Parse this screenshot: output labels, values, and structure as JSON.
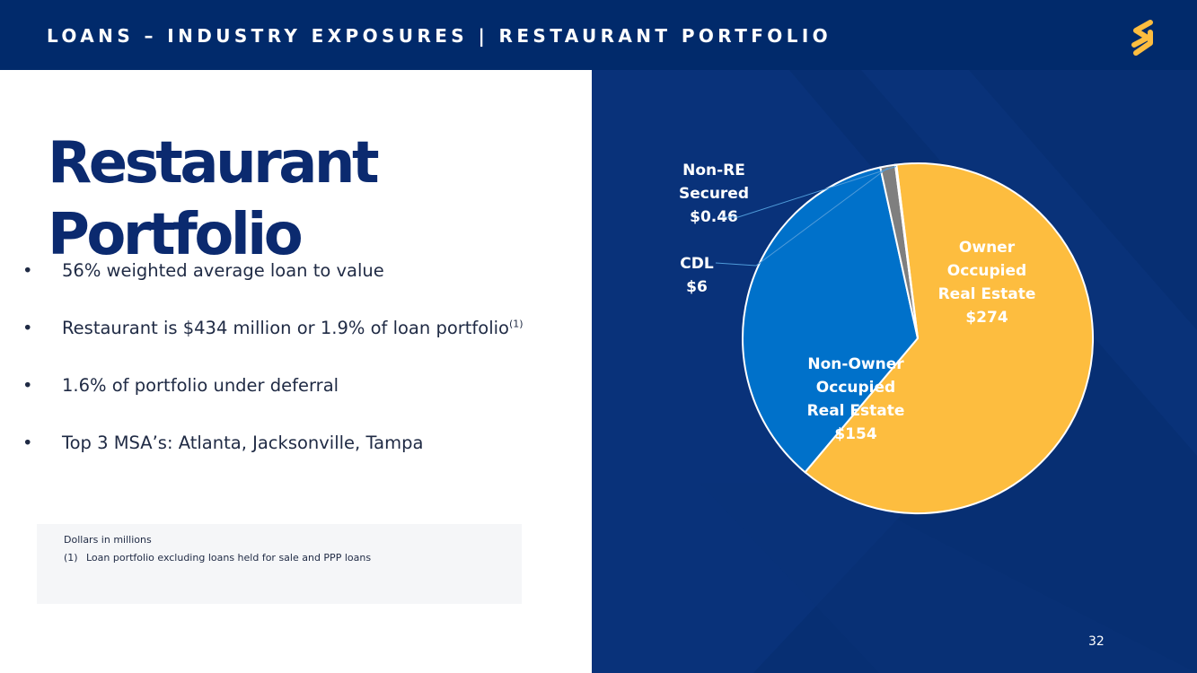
{
  "header": {
    "title": "LOANS – INDUSTRY EXPOSURES | RESTAURANT PORTFOLIO"
  },
  "heading": {
    "line1": "Restaurant",
    "line2": "Portfolio"
  },
  "bullets": [
    {
      "text": "56% weighted average loan to value",
      "sup": ""
    },
    {
      "text": "Restaurant is $434 million or 1.9% of loan portfolio",
      "sup": "(1)"
    },
    {
      "text": "1.6% of portfolio under deferral",
      "sup": ""
    },
    {
      "text": "Top 3 MSA’s: Atlanta, Jacksonville, Tampa",
      "sup": ""
    }
  ],
  "footnotes": {
    "units": "Dollars in millions",
    "note_label": "(1)",
    "note_text": "Loan portfolio excluding loans held for sale and PPP loans"
  },
  "page_number": "32",
  "colors": {
    "navy": "#012a6b",
    "owner_occupied": "#fdbd3f",
    "non_owner_occupied": "#0071ca",
    "cdl": "#7f7f7f",
    "non_re": "#fdbd3f"
  },
  "chart_data": {
    "type": "pie",
    "units": "Dollars in millions",
    "slices": [
      {
        "name": "Owner Occupied Real Estate",
        "lines": [
          "Owner",
          "Occupied",
          "Real Estate",
          "$274"
        ],
        "value": 274,
        "color": "#fdbd3f",
        "text_color": "#ffffff"
      },
      {
        "name": "Non-Owner Occupied Real Estate",
        "lines": [
          "Non-Owner",
          "Occupied",
          "Real Estate",
          "$154"
        ],
        "value": 154,
        "color": "#0071ca",
        "text_color": "#ffffff"
      },
      {
        "name": "CDL",
        "lines": [
          "CDL",
          "$6"
        ],
        "value": 6,
        "color": "#7f7f7f",
        "text_color": "#ffffff"
      },
      {
        "name": "Non-RE Secured",
        "lines": [
          "Non-RE",
          "Secured",
          "$0.46"
        ],
        "value": 0.46,
        "color": "#fdbd3f",
        "text_color": "#ffffff"
      }
    ]
  }
}
